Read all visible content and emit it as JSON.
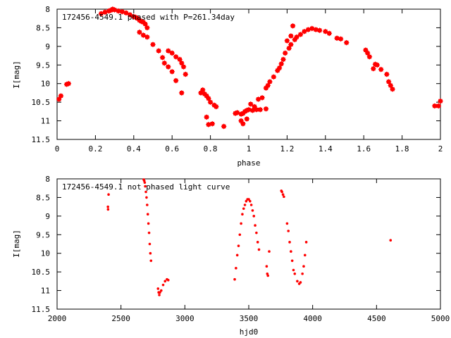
{
  "chart_data": [
    {
      "type": "scatter",
      "title": "172456-4549.1 phased with P=261.34day",
      "xlabel": "phase",
      "ylabel": "I[mag]",
      "xlim": [
        0,
        2
      ],
      "ylim": [
        11.5,
        8
      ],
      "y_inverted": true,
      "x_ticks": [
        "0",
        "0.2",
        "0.4",
        "0.6",
        "0.8",
        "1",
        "1.2",
        "1.4",
        "1.6",
        "1.8",
        "2"
      ],
      "y_ticks": [
        "8",
        "8.5",
        "9",
        "9.5",
        "10",
        "10.5",
        "11",
        "11.5"
      ],
      "marker": "star",
      "color": "#ff0000",
      "grid": false,
      "legend": "none",
      "points": [
        [
          0.01,
          10.42
        ],
        [
          0.02,
          10.33
        ],
        [
          0.05,
          10.02
        ],
        [
          0.06,
          10.0
        ],
        [
          0.23,
          8.12
        ],
        [
          0.25,
          8.08
        ],
        [
          0.27,
          8.05
        ],
        [
          0.28,
          8.03
        ],
        [
          0.29,
          8.0
        ],
        [
          0.3,
          8.02
        ],
        [
          0.32,
          8.05
        ],
        [
          0.34,
          8.07
        ],
        [
          0.36,
          8.1
        ],
        [
          0.38,
          8.15
        ],
        [
          0.4,
          8.2
        ],
        [
          0.41,
          8.22
        ],
        [
          0.42,
          8.25
        ],
        [
          0.43,
          8.3
        ],
        [
          0.44,
          8.33
        ],
        [
          0.45,
          8.35
        ],
        [
          0.46,
          8.4
        ],
        [
          0.47,
          8.5
        ],
        [
          0.43,
          8.62
        ],
        [
          0.45,
          8.7
        ],
        [
          0.47,
          8.75
        ],
        [
          0.5,
          8.95
        ],
        [
          0.53,
          9.12
        ],
        [
          0.55,
          9.3
        ],
        [
          0.56,
          9.45
        ],
        [
          0.58,
          9.55
        ],
        [
          0.6,
          9.68
        ],
        [
          0.62,
          9.92
        ],
        [
          0.58,
          9.12
        ],
        [
          0.6,
          9.18
        ],
        [
          0.62,
          9.28
        ],
        [
          0.64,
          9.35
        ],
        [
          0.65,
          9.45
        ],
        [
          0.66,
          9.55
        ],
        [
          0.67,
          9.75
        ],
        [
          0.65,
          10.25
        ],
        [
          0.75,
          10.25
        ],
        [
          0.76,
          10.17
        ],
        [
          0.77,
          10.28
        ],
        [
          0.78,
          10.33
        ],
        [
          0.79,
          10.4
        ],
        [
          0.8,
          10.5
        ],
        [
          0.82,
          10.58
        ],
        [
          0.83,
          10.62
        ],
        [
          0.78,
          10.9
        ],
        [
          0.79,
          11.1
        ],
        [
          0.81,
          11.08
        ],
        [
          0.87,
          11.15
        ],
        [
          0.93,
          10.8
        ],
        [
          0.94,
          10.78
        ],
        [
          0.96,
          10.82
        ],
        [
          0.97,
          10.8
        ],
        [
          0.98,
          10.75
        ],
        [
          0.99,
          10.72
        ],
        [
          1.0,
          10.7
        ],
        [
          1.02,
          10.72
        ],
        [
          1.04,
          10.7
        ],
        [
          1.06,
          10.7
        ],
        [
          1.09,
          10.68
        ],
        [
          0.96,
          11.0
        ],
        [
          0.97,
          11.08
        ],
        [
          0.99,
          10.95
        ],
        [
          1.01,
          10.55
        ],
        [
          1.03,
          10.62
        ],
        [
          1.05,
          10.42
        ],
        [
          1.07,
          10.38
        ],
        [
          1.09,
          10.12
        ],
        [
          1.1,
          10.05
        ],
        [
          1.11,
          9.95
        ],
        [
          1.13,
          9.82
        ],
        [
          1.15,
          9.65
        ],
        [
          1.16,
          9.58
        ],
        [
          1.17,
          9.47
        ],
        [
          1.18,
          9.35
        ],
        [
          1.19,
          9.18
        ],
        [
          1.21,
          9.05
        ],
        [
          1.22,
          8.95
        ],
        [
          1.24,
          8.82
        ],
        [
          1.25,
          8.75
        ],
        [
          1.27,
          8.68
        ],
        [
          1.29,
          8.6
        ],
        [
          1.31,
          8.55
        ],
        [
          1.33,
          8.52
        ],
        [
          1.35,
          8.55
        ],
        [
          1.37,
          8.57
        ],
        [
          1.4,
          8.6
        ],
        [
          1.42,
          8.65
        ],
        [
          1.46,
          8.78
        ],
        [
          1.48,
          8.8
        ],
        [
          1.51,
          8.9
        ],
        [
          1.2,
          8.85
        ],
        [
          1.22,
          8.72
        ],
        [
          1.23,
          8.45
        ],
        [
          1.61,
          9.1
        ],
        [
          1.62,
          9.18
        ],
        [
          1.63,
          9.28
        ],
        [
          1.65,
          9.6
        ],
        [
          1.66,
          9.48
        ],
        [
          1.67,
          9.5
        ],
        [
          1.69,
          9.62
        ],
        [
          1.72,
          9.75
        ],
        [
          1.73,
          9.95
        ],
        [
          1.74,
          10.05
        ],
        [
          1.75,
          10.15
        ],
        [
          1.97,
          10.6
        ],
        [
          1.99,
          10.6
        ],
        [
          2.0,
          10.47
        ]
      ]
    },
    {
      "type": "scatter",
      "title": "172456-4549.1 not phased light curve",
      "xlabel": "hjd0",
      "ylabel": "I[mag]",
      "xlim": [
        2000,
        5000
      ],
      "ylim": [
        11.5,
        8
      ],
      "y_inverted": true,
      "x_ticks": [
        "2000",
        "2500",
        "3000",
        "3500",
        "4000",
        "4500",
        "5000"
      ],
      "y_ticks": [
        "8",
        "8.5",
        "9",
        "9.5",
        "10",
        "10.5",
        "11",
        "11.5"
      ],
      "marker": "dot",
      "color": "#ff0000",
      "grid": false,
      "legend": "none",
      "points": [
        [
          2398,
          8.75
        ],
        [
          2399,
          8.82
        ],
        [
          2403,
          8.42
        ],
        [
          2678,
          8.02
        ],
        [
          2682,
          8.05
        ],
        [
          2686,
          8.1
        ],
        [
          2690,
          8.2
        ],
        [
          2695,
          8.35
        ],
        [
          2700,
          8.5
        ],
        [
          2705,
          8.7
        ],
        [
          2710,
          8.95
        ],
        [
          2715,
          9.2
        ],
        [
          2720,
          9.45
        ],
        [
          2725,
          9.75
        ],
        [
          2730,
          10.0
        ],
        [
          2735,
          10.2
        ],
        [
          2790,
          10.95
        ],
        [
          2795,
          11.05
        ],
        [
          2800,
          11.12
        ],
        [
          2805,
          11.05
        ],
        [
          2815,
          11.0
        ],
        [
          2830,
          10.85
        ],
        [
          2845,
          10.75
        ],
        [
          2860,
          10.7
        ],
        [
          2870,
          10.72
        ],
        [
          3390,
          10.7
        ],
        [
          3400,
          10.4
        ],
        [
          3410,
          10.05
        ],
        [
          3420,
          9.8
        ],
        [
          3430,
          9.5
        ],
        [
          3440,
          9.2
        ],
        [
          3450,
          8.95
        ],
        [
          3460,
          8.8
        ],
        [
          3470,
          8.7
        ],
        [
          3480,
          8.6
        ],
        [
          3490,
          8.55
        ],
        [
          3500,
          8.55
        ],
        [
          3510,
          8.6
        ],
        [
          3520,
          8.7
        ],
        [
          3530,
          8.85
        ],
        [
          3540,
          9.0
        ],
        [
          3550,
          9.25
        ],
        [
          3560,
          9.45
        ],
        [
          3570,
          9.7
        ],
        [
          3580,
          9.9
        ],
        [
          3640,
          10.35
        ],
        [
          3645,
          10.55
        ],
        [
          3650,
          10.6
        ],
        [
          3660,
          9.95
        ],
        [
          3755,
          8.32
        ],
        [
          3760,
          8.35
        ],
        [
          3768,
          8.42
        ],
        [
          3775,
          8.48
        ],
        [
          3800,
          9.2
        ],
        [
          3810,
          9.4
        ],
        [
          3820,
          9.7
        ],
        [
          3830,
          9.95
        ],
        [
          3840,
          10.2
        ],
        [
          3850,
          10.45
        ],
        [
          3860,
          10.55
        ],
        [
          3880,
          10.75
        ],
        [
          3895,
          10.82
        ],
        [
          3905,
          10.78
        ],
        [
          3920,
          10.55
        ],
        [
          3930,
          10.35
        ],
        [
          3940,
          10.05
        ],
        [
          3950,
          9.7
        ],
        [
          4610,
          9.65
        ]
      ]
    }
  ]
}
